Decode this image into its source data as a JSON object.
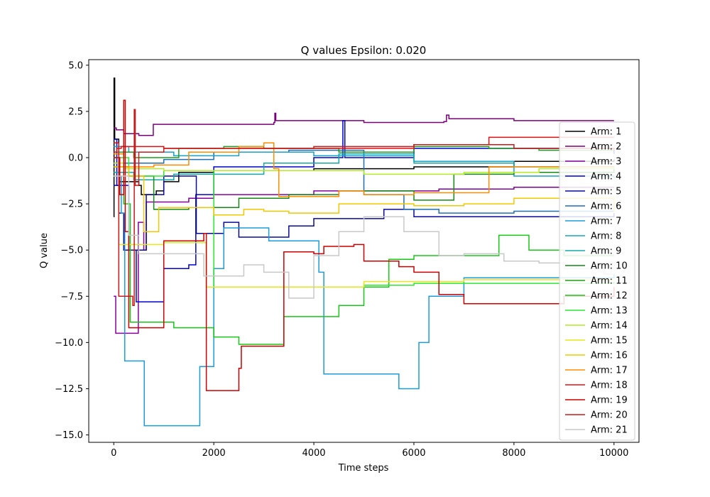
{
  "chart_data": {
    "type": "line",
    "title": "Q values Epsilon: 0.020",
    "xlabel": "Time steps",
    "ylabel": "Q value",
    "xlim": [
      -500,
      10500
    ],
    "ylim": [
      -15.4,
      5.3
    ],
    "xticks": [
      0,
      2000,
      4000,
      6000,
      8000,
      10000
    ],
    "yticks": [
      5.0,
      2.5,
      0.0,
      -2.5,
      -5.0,
      -7.5,
      -10.0,
      -12.5,
      -15.0
    ],
    "xtick_labels": [
      "0",
      "2000",
      "4000",
      "6000",
      "8000",
      "10000"
    ],
    "ytick_labels": [
      "5.0",
      "2.5",
      "0.0",
      "−2.5",
      "−5.0",
      "−7.5",
      "−10.0",
      "−12.5",
      "−15.0"
    ],
    "grid": false,
    "legend_position": "right",
    "series": [
      {
        "name": "Arm: 1",
        "color": "#000000",
        "points": [
          [
            0,
            -3.2
          ],
          [
            5,
            4.3
          ],
          [
            20,
            1.0
          ],
          [
            100,
            -1.3
          ],
          [
            500,
            -1.5
          ],
          [
            550,
            -2.0
          ],
          [
            850,
            -1.8
          ],
          [
            1000,
            -1.3
          ],
          [
            1300,
            -0.8
          ],
          [
            2000,
            -0.7
          ],
          [
            4000,
            -0.6
          ],
          [
            6000,
            -0.5
          ],
          [
            8000,
            -0.2
          ],
          [
            10000,
            -0.1
          ]
        ]
      },
      {
        "name": "Arm: 2",
        "color": "#7b007b",
        "points": [
          [
            0,
            1.6
          ],
          [
            50,
            1.5
          ],
          [
            200,
            1.3
          ],
          [
            500,
            1.2
          ],
          [
            790,
            1.8
          ],
          [
            2000,
            1.8
          ],
          [
            3200,
            1.9
          ],
          [
            3220,
            2.4
          ],
          [
            3240,
            2.0
          ],
          [
            5000,
            1.9
          ],
          [
            6600,
            1.95
          ],
          [
            6650,
            2.3
          ],
          [
            6700,
            2.1
          ],
          [
            8000,
            2.0
          ],
          [
            10000,
            2.0
          ]
        ]
      },
      {
        "name": "Arm: 3",
        "color": "#8800a0",
        "points": [
          [
            0,
            -7.5
          ],
          [
            40,
            -9.5
          ],
          [
            480,
            -9.5
          ],
          [
            490,
            -3.5
          ],
          [
            600,
            -5.0
          ],
          [
            650,
            -2.4
          ],
          [
            1000,
            -2.4
          ],
          [
            1500,
            -2.2
          ],
          [
            2000,
            -2.0
          ],
          [
            4000,
            -1.8
          ],
          [
            6500,
            -1.7
          ],
          [
            8000,
            -1.6
          ],
          [
            10000,
            -1.6
          ]
        ]
      },
      {
        "name": "Arm: 4",
        "color": "#0000d0",
        "points": [
          [
            0,
            1.0
          ],
          [
            60,
            -1.5
          ],
          [
            300,
            -5.0
          ],
          [
            450,
            -7.8
          ],
          [
            920,
            -7.8
          ],
          [
            1000,
            -6.0
          ],
          [
            1500,
            -5.8
          ],
          [
            1640,
            -2.0
          ],
          [
            2000,
            -0.5
          ],
          [
            4000,
            0.0
          ],
          [
            4580,
            2.0
          ],
          [
            4620,
            0.0
          ],
          [
            6000,
            0.5
          ],
          [
            10000,
            0.2
          ]
        ]
      },
      {
        "name": "Arm: 5",
        "color": "#0a0a9a",
        "points": [
          [
            0,
            -1.5
          ],
          [
            100,
            -3.0
          ],
          [
            200,
            -5.0
          ],
          [
            550,
            -5.0
          ],
          [
            650,
            -2.0
          ],
          [
            1000,
            -1.0
          ],
          [
            1650,
            -4.1
          ],
          [
            2200,
            -3.5
          ],
          [
            2500,
            -4.3
          ],
          [
            3400,
            -4.3
          ],
          [
            3500,
            -3.7
          ],
          [
            4000,
            -3.3
          ],
          [
            5400,
            -2.8
          ],
          [
            6000,
            -3.2
          ],
          [
            10000,
            -3.0
          ]
        ]
      },
      {
        "name": "Arm: 6",
        "color": "#1f6fb4",
        "points": [
          [
            0,
            0.2
          ],
          [
            200,
            -0.3
          ],
          [
            1000,
            -0.1
          ],
          [
            2000,
            0.3
          ],
          [
            3500,
            0.4
          ],
          [
            5000,
            -2.0
          ],
          [
            5800,
            -2.8
          ],
          [
            6500,
            -3.0
          ],
          [
            8000,
            -2.9
          ],
          [
            10000,
            -2.9
          ]
        ]
      },
      {
        "name": "Arm: 7",
        "color": "#1c9bd8",
        "points": [
          [
            0,
            -1.0
          ],
          [
            150,
            -3.0
          ],
          [
            220,
            -11.0
          ],
          [
            600,
            -11.0
          ],
          [
            610,
            -14.5
          ],
          [
            1700,
            -14.5
          ],
          [
            1720,
            -11.3
          ],
          [
            2000,
            -6.0
          ],
          [
            2200,
            -3.8
          ],
          [
            3000,
            -3.8
          ],
          [
            3100,
            -4.5
          ],
          [
            4100,
            -6.2
          ],
          [
            4200,
            -11.7
          ],
          [
            5000,
            -11.7
          ],
          [
            5700,
            -12.5
          ],
          [
            6100,
            -10.0
          ],
          [
            6300,
            -7.5
          ],
          [
            6800,
            -7.5
          ],
          [
            7000,
            -6.5
          ],
          [
            10000,
            -6.3
          ]
        ]
      },
      {
        "name": "Arm: 8",
        "color": "#1aa0c4",
        "points": [
          [
            0,
            0.6
          ],
          [
            300,
            0.3
          ],
          [
            1200,
            0.1
          ],
          [
            2500,
            0.3
          ],
          [
            4000,
            0.1
          ],
          [
            6000,
            -0.2
          ],
          [
            8000,
            -1.0
          ],
          [
            10000,
            -1.1
          ]
        ]
      },
      {
        "name": "Arm: 9",
        "color": "#15a8a8",
        "points": [
          [
            0,
            -0.8
          ],
          [
            400,
            -1.2
          ],
          [
            1200,
            -0.9
          ],
          [
            3000,
            -0.3
          ],
          [
            4500,
            0.2
          ],
          [
            6000,
            -0.3
          ],
          [
            8000,
            -0.5
          ],
          [
            10000,
            -0.7
          ]
        ]
      },
      {
        "name": "Arm: 10",
        "color": "#148a14",
        "points": [
          [
            0,
            -0.5
          ],
          [
            300,
            -1.0
          ],
          [
            800,
            -2.8
          ],
          [
            1500,
            -2.7
          ],
          [
            2500,
            -2.2
          ],
          [
            3500,
            -2.0
          ],
          [
            4500,
            -1.8
          ],
          [
            6000,
            -2.3
          ],
          [
            6800,
            -0.9
          ],
          [
            8000,
            -0.8
          ],
          [
            10000,
            -0.6
          ]
        ]
      },
      {
        "name": "Arm: 11",
        "color": "#1e9e1e",
        "points": [
          [
            0,
            0.3
          ],
          [
            400,
            0.0
          ],
          [
            1300,
            0.5
          ],
          [
            2200,
            0.6
          ],
          [
            3000,
            0.5
          ],
          [
            4500,
            0.3
          ],
          [
            6000,
            0.6
          ],
          [
            7500,
            0.5
          ],
          [
            8500,
            0.4
          ],
          [
            10000,
            0.5
          ]
        ]
      },
      {
        "name": "Arm: 12",
        "color": "#16c816",
        "points": [
          [
            0,
            0.2
          ],
          [
            200,
            -2.5
          ],
          [
            330,
            -8.9
          ],
          [
            1000,
            -8.9
          ],
          [
            1200,
            -9.2
          ],
          [
            1800,
            -9.2
          ],
          [
            2000,
            -9.7
          ],
          [
            2500,
            -10.1
          ],
          [
            3200,
            -10.1
          ],
          [
            3400,
            -8.6
          ],
          [
            4500,
            -8.0
          ],
          [
            5000,
            -7.0
          ],
          [
            5500,
            -5.5
          ],
          [
            6000,
            -5.3
          ],
          [
            7000,
            -5.3
          ],
          [
            7700,
            -4.2
          ],
          [
            8300,
            -5.0
          ],
          [
            9000,
            -5.3
          ],
          [
            10000,
            -5.3
          ]
        ]
      },
      {
        "name": "Arm: 13",
        "color": "#2ee82e",
        "points": [
          [
            0,
            0.0
          ],
          [
            300,
            -1.0
          ],
          [
            1000,
            -0.7
          ],
          [
            2000,
            -7.0
          ],
          [
            3000,
            -7.0
          ],
          [
            4000,
            -7.0
          ],
          [
            5000,
            -6.9
          ],
          [
            6000,
            -6.8
          ],
          [
            8000,
            -6.8
          ],
          [
            10000,
            -6.7
          ]
        ]
      },
      {
        "name": "Arm: 14",
        "color": "#b4ec22",
        "points": [
          [
            0,
            -0.3
          ],
          [
            200,
            -0.6
          ],
          [
            1000,
            -0.7
          ],
          [
            3000,
            -0.7
          ],
          [
            5000,
            -0.9
          ],
          [
            7000,
            -0.8
          ],
          [
            8500,
            -0.6
          ],
          [
            10000,
            -0.5
          ]
        ]
      },
      {
        "name": "Arm: 15",
        "color": "#e6e61a",
        "points": [
          [
            0,
            -1.0
          ],
          [
            100,
            -4.7
          ],
          [
            600,
            -4.7
          ],
          [
            1000,
            -4.6
          ],
          [
            1800,
            -4.6
          ],
          [
            1850,
            -7.0
          ],
          [
            3000,
            -7.0
          ],
          [
            4000,
            -7.0
          ],
          [
            5000,
            -6.7
          ],
          [
            7000,
            -6.6
          ],
          [
            10000,
            -6.6
          ]
        ]
      },
      {
        "name": "Arm: 16",
        "color": "#f0c800",
        "points": [
          [
            0,
            -0.5
          ],
          [
            300,
            -1.0
          ],
          [
            600,
            -4.0
          ],
          [
            900,
            -2.7
          ],
          [
            2000,
            -3.1
          ],
          [
            2600,
            -2.8
          ],
          [
            3000,
            -2.9
          ],
          [
            3500,
            -3.0
          ],
          [
            4500,
            -2.5
          ],
          [
            6000,
            -2.6
          ],
          [
            7000,
            -2.5
          ],
          [
            8000,
            -2.2
          ],
          [
            10000,
            -2.9
          ]
        ]
      },
      {
        "name": "Arm: 17",
        "color": "#ff8c00",
        "points": [
          [
            0,
            0.2
          ],
          [
            200,
            -0.5
          ],
          [
            800,
            -0.4
          ],
          [
            1500,
            0.3
          ],
          [
            2500,
            0.6
          ],
          [
            3000,
            0.8
          ],
          [
            3200,
            -0.6
          ],
          [
            3300,
            -2.1
          ],
          [
            4500,
            -1.8
          ],
          [
            5000,
            -2.0
          ],
          [
            6000,
            -1.9
          ],
          [
            7500,
            -0.5
          ],
          [
            10000,
            -0.5
          ]
        ]
      },
      {
        "name": "Arm: 18",
        "color": "#e01010",
        "points": [
          [
            0,
            0.3
          ],
          [
            60,
            0.5
          ],
          [
            150,
            0.6
          ],
          [
            1000,
            0.5
          ],
          [
            3000,
            0.5
          ],
          [
            6000,
            0.7
          ],
          [
            7500,
            1.1
          ],
          [
            8000,
            1.1
          ],
          [
            10000,
            1.1
          ]
        ]
      },
      {
        "name": "Arm: 19",
        "color": "#cc0000",
        "points": [
          [
            0,
            0.0
          ],
          [
            120,
            -2.0
          ],
          [
            200,
            3.1
          ],
          [
            230,
            -4.0
          ],
          [
            300,
            -9.2
          ],
          [
            800,
            -9.2
          ],
          [
            1000,
            -4.5
          ],
          [
            1800,
            -4.1
          ],
          [
            1850,
            -12.6
          ],
          [
            2200,
            -12.6
          ],
          [
            2500,
            -11.4
          ],
          [
            2550,
            -10.2
          ],
          [
            3200,
            -10.2
          ],
          [
            3400,
            -5.1
          ],
          [
            4000,
            -5.2
          ],
          [
            4200,
            -4.8
          ],
          [
            4800,
            -4.7
          ],
          [
            5000,
            -5.6
          ],
          [
            5700,
            -5.9
          ],
          [
            6000,
            -6.2
          ],
          [
            6300,
            -6.2
          ],
          [
            6500,
            -7.4
          ],
          [
            7000,
            -7.9
          ],
          [
            8000,
            -7.9
          ],
          [
            9000,
            -7.5
          ],
          [
            10000,
            -7.0
          ]
        ]
      },
      {
        "name": "Arm: 20",
        "color": "#c81a1a",
        "points": [
          [
            0,
            0.8
          ],
          [
            100,
            -7.5
          ],
          [
            250,
            -7.5
          ],
          [
            300,
            -7.5
          ],
          [
            380,
            -8.0
          ],
          [
            410,
            2.6
          ],
          [
            430,
            -1.5
          ],
          [
            500,
            0.3
          ],
          [
            1000,
            0.5
          ],
          [
            2000,
            0.5
          ],
          [
            4000,
            0.6
          ],
          [
            6000,
            0.7
          ],
          [
            8000,
            0.5
          ],
          [
            10000,
            0.4
          ]
        ]
      },
      {
        "name": "Arm: 21",
        "color": "#c8c8c8",
        "points": [
          [
            0,
            -1.0
          ],
          [
            300,
            -4.2
          ],
          [
            500,
            -5.2
          ],
          [
            1000,
            -5.2
          ],
          [
            1800,
            -6.4
          ],
          [
            2200,
            -6.4
          ],
          [
            2600,
            -5.8
          ],
          [
            3000,
            -6.2
          ],
          [
            3500,
            -7.6
          ],
          [
            4000,
            -5.3
          ],
          [
            4500,
            -4.0
          ],
          [
            5000,
            -3.2
          ],
          [
            5800,
            -4.0
          ],
          [
            6500,
            -5.3
          ],
          [
            7000,
            -5.2
          ],
          [
            7800,
            -5.6
          ],
          [
            8500,
            -5.7
          ],
          [
            9000,
            -6.0
          ],
          [
            9800,
            -6.3
          ],
          [
            10000,
            -6.3
          ]
        ]
      }
    ]
  }
}
